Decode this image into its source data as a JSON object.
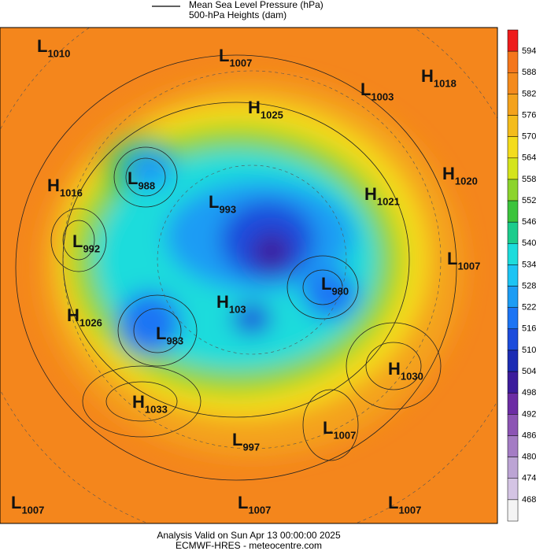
{
  "header": {
    "legend": [
      "Mean Sea Level Pressure (hPa)",
      "500-hPa Heights (dam)"
    ]
  },
  "centers": [
    {
      "type": "L",
      "value": 1010
    },
    {
      "type": "L",
      "value": 1007
    },
    {
      "type": "H",
      "value": 1025
    },
    {
      "type": "L",
      "value": 1003
    },
    {
      "type": "H",
      "value": 1018
    },
    {
      "type": "H",
      "value": 1016
    },
    {
      "type": "L",
      "value": 988
    },
    {
      "type": "L",
      "value": 993
    },
    {
      "type": "H",
      "value": 1020
    },
    {
      "type": "H",
      "value": 1021
    },
    {
      "type": "L",
      "value": 992
    },
    {
      "type": "L",
      "value": 1007
    },
    {
      "type": "L",
      "value": 980
    },
    {
      "type": "H",
      "value": 1026
    },
    {
      "type": "H",
      "value": 103
    },
    {
      "type": "L",
      "value": 983
    },
    {
      "type": "H",
      "value": 1030
    },
    {
      "type": "H",
      "value": 1033
    },
    {
      "type": "L",
      "value": 1007
    },
    {
      "type": "L",
      "value": 997
    },
    {
      "type": "L",
      "value": 1007
    },
    {
      "type": "L",
      "value": 1007
    },
    {
      "type": "L",
      "value": 1007
    }
  ],
  "colorbar": {
    "colors": [
      "#ee1c1c",
      "#f4761c",
      "#f48a1c",
      "#f4a21c",
      "#f4bc1c",
      "#f4dc1c",
      "#d4e41c",
      "#8cd42c",
      "#3cc43c",
      "#1ccc8c",
      "#1cdcdc",
      "#1cc4f4",
      "#1c9cf4",
      "#1c74f4",
      "#1c4cdc",
      "#1c2cb4",
      "#3c1c9c",
      "#6c2ca4",
      "#8c54b4",
      "#a47cc4",
      "#bca4d4",
      "#d4c4e4",
      "#f4f4f4"
    ],
    "ticks": [
      594,
      588,
      582,
      576,
      570,
      564,
      558,
      552,
      546,
      540,
      534,
      528,
      522,
      516,
      510,
      504,
      498,
      492,
      486,
      480,
      474,
      468
    ]
  },
  "footer": [
    "Analysis Valid on Sun Apr 13 00:00:00 2025",
    "ECMWF-HRES - meteocentre.com"
  ]
}
